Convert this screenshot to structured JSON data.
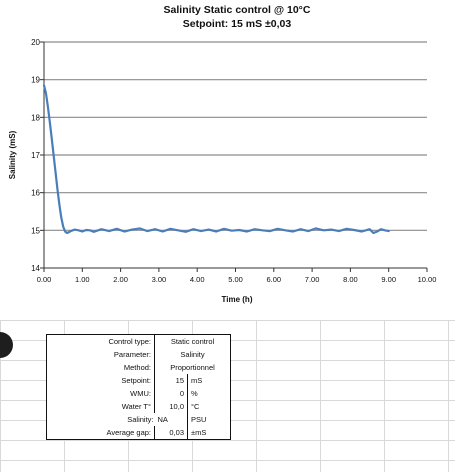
{
  "chart_data": {
    "type": "line",
    "title": "Salinity Static control @ 10°C",
    "subtitle": "Setpoint: 15 mS ±0,03",
    "xlabel": "Time (h)",
    "ylabel": "Salinity (mS)",
    "xlim": [
      0,
      10
    ],
    "ylim": [
      14,
      20
    ],
    "x_ticks": [
      "0.00",
      "1.00",
      "2.00",
      "3.00",
      "4.00",
      "5.00",
      "6.00",
      "7.00",
      "8.00",
      "9.00",
      "10.00"
    ],
    "y_ticks": [
      "14",
      "15",
      "16",
      "17",
      "18",
      "19",
      "20"
    ],
    "grid": true,
    "legend": "none",
    "series": [
      {
        "color": "#4a7ebb",
        "x": [
          0,
          0.05,
          0.1,
          0.15,
          0.2,
          0.25,
          0.3,
          0.35,
          0.4,
          0.45,
          0.5,
          0.55,
          0.6,
          0.65,
          0.7,
          0.75,
          0.8,
          0.9,
          1.0,
          1.1,
          1.2,
          1.3,
          1.5,
          1.7,
          1.9,
          2.1,
          2.3,
          2.5,
          2.7,
          2.9,
          3.1,
          3.3,
          3.5,
          3.7,
          3.9,
          4.1,
          4.3,
          4.5,
          4.7,
          4.9,
          5.1,
          5.3,
          5.5,
          5.7,
          5.9,
          6.1,
          6.3,
          6.5,
          6.7,
          6.9,
          7.1,
          7.3,
          7.5,
          7.7,
          7.9,
          8.1,
          8.3,
          8.5,
          8.6,
          8.7,
          8.8,
          8.9,
          9.0
        ],
        "y": [
          18.85,
          18.65,
          18.3,
          17.9,
          17.45,
          17.0,
          16.55,
          16.1,
          15.7,
          15.35,
          15.1,
          14.97,
          14.93,
          14.95,
          14.98,
          15.0,
          15.02,
          15.0,
          14.97,
          15.01,
          15.0,
          14.96,
          15.03,
          14.98,
          15.04,
          14.97,
          15.02,
          15.05,
          14.98,
          15.03,
          14.97,
          15.04,
          15.0,
          14.96,
          15.03,
          14.98,
          15.02,
          14.97,
          15.04,
          14.99,
          15.01,
          14.97,
          15.03,
          15.0,
          14.98,
          15.04,
          15.0,
          14.97,
          15.03,
          14.98,
          15.05,
          15.0,
          15.02,
          14.98,
          15.04,
          15.01,
          14.97,
          15.03,
          14.93,
          14.97,
          15.03,
          15.0,
          14.98
        ]
      }
    ]
  },
  "control_table": {
    "control_type_label": "Control type:",
    "control_type_value": "Static control",
    "parameter_label": "Parameter:",
    "parameter_value": "Salinity",
    "method_label": "Method:",
    "method_value": "Proportionnel",
    "setpoint_label": "Setpoint:",
    "setpoint_value": "15",
    "setpoint_unit": "mS",
    "wmu_label": "WMU:",
    "wmu_value": "0",
    "wmu_unit": "%",
    "water_label": "Water T°",
    "water_value": "10,0",
    "water_unit": "°C",
    "salinity_label": "Salinity:",
    "salinity_na": "NA",
    "salinity_unit": "PSU",
    "gap_label": "Average gap:",
    "gap_value": "0,03",
    "gap_unit": "±mS"
  }
}
